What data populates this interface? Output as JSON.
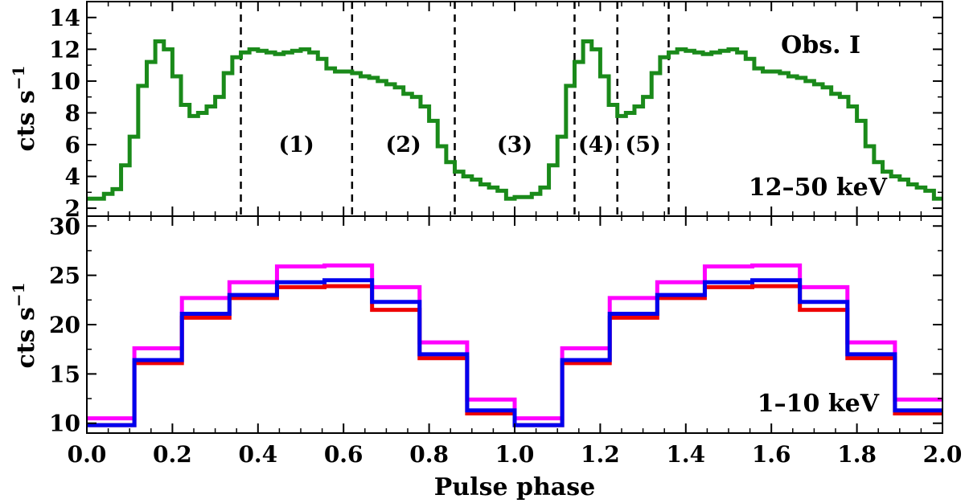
{
  "chart_data": [
    {
      "type": "line",
      "panel": "top",
      "step": true,
      "annotation": "Obs. I",
      "energy_label": "12–50 keV",
      "ylabel_main": "cts s",
      "ylabel_sup": "−1",
      "xlim": [
        0,
        2
      ],
      "ylim": [
        1.5,
        15
      ],
      "yticks": [
        2,
        4,
        6,
        8,
        10,
        12,
        14
      ],
      "dividers": [
        0.36,
        0.62,
        0.86,
        1.14,
        1.24,
        1.36
      ],
      "regions": [
        {
          "label": "(1)",
          "x": 0.49,
          "y": 6.0
        },
        {
          "label": "(2)",
          "x": 0.74,
          "y": 6.0
        },
        {
          "label": "(3)",
          "x": 1.0,
          "y": 6.0
        },
        {
          "label": "(4)",
          "x": 1.19,
          "y": 6.0
        },
        {
          "label": "(5)",
          "x": 1.3,
          "y": 6.0
        }
      ],
      "series": [
        {
          "color": "#1a8a1a",
          "x_start": 0.0,
          "bin_width": 0.02,
          "values": [
            2.6,
            2.6,
            2.9,
            3.2,
            4.7,
            6.5,
            9.7,
            11.2,
            12.5,
            12.0,
            10.3,
            8.5,
            7.8,
            8.0,
            8.4,
            9.0,
            10.5,
            11.5,
            11.8,
            12.0,
            11.9,
            11.8,
            11.7,
            11.8,
            11.9,
            12.0,
            11.8,
            11.4,
            10.8,
            10.6,
            10.6,
            10.5,
            10.3,
            10.2,
            10.0,
            9.8,
            9.6,
            9.2,
            9.0,
            8.4,
            7.5,
            5.9,
            4.9,
            4.3,
            4.0,
            3.8,
            3.5,
            3.3,
            3.1,
            2.6,
            2.7,
            2.7,
            2.9,
            3.3,
            4.7,
            6.5,
            9.7,
            11.2,
            12.5,
            12.0,
            10.3,
            8.5,
            7.8,
            8.0,
            8.4,
            9.0,
            10.5,
            11.5,
            11.8,
            12.0,
            11.9,
            11.8,
            11.7,
            11.8,
            11.9,
            12.0,
            11.8,
            11.4,
            10.8,
            10.6,
            10.6,
            10.5,
            10.3,
            10.2,
            10.0,
            9.8,
            9.6,
            9.2,
            9.0,
            8.4,
            7.5,
            5.9,
            4.9,
            4.3,
            4.0,
            3.8,
            3.5,
            3.3,
            3.1,
            2.6
          ]
        }
      ]
    },
    {
      "type": "line",
      "panel": "bottom",
      "step": true,
      "energy_label": "1–10 keV",
      "xlabel": "Pulse phase",
      "ylabel_main": "cts s",
      "ylabel_sup": "−1",
      "xlim": [
        0,
        2
      ],
      "ylim": [
        9,
        31
      ],
      "yticks": [
        10,
        15,
        20,
        25,
        30
      ],
      "xticks": [
        "0.0",
        "0.2",
        "0.4",
        "0.6",
        "0.8",
        "1.0",
        "1.2",
        "1.4",
        "1.6",
        "1.8",
        "2.0"
      ],
      "series": [
        {
          "color": "#ff00ff",
          "x_start": 0.0,
          "bin_width": 0.111111,
          "values": [
            10.5,
            17.6,
            22.7,
            24.3,
            25.9,
            26.0,
            23.8,
            18.2,
            12.4,
            10.5,
            17.6,
            22.7,
            24.3,
            25.9,
            26.0,
            23.8,
            18.2,
            12.4
          ]
        },
        {
          "color": "#ee0000",
          "x_start": 0.0,
          "bin_width": 0.111111,
          "values": [
            9.8,
            16.1,
            20.7,
            22.7,
            23.8,
            23.9,
            21.5,
            16.6,
            11.0,
            9.8,
            16.1,
            20.7,
            22.7,
            23.8,
            23.9,
            21.5,
            16.6,
            11.0
          ]
        },
        {
          "color": "#0000ee",
          "x_start": 0.0,
          "bin_width": 0.111111,
          "values": [
            9.8,
            16.4,
            21.1,
            23.0,
            24.3,
            24.5,
            22.3,
            17.0,
            11.3,
            9.8,
            16.4,
            21.1,
            23.0,
            24.3,
            24.5,
            22.3,
            17.0,
            11.3
          ]
        }
      ]
    }
  ]
}
